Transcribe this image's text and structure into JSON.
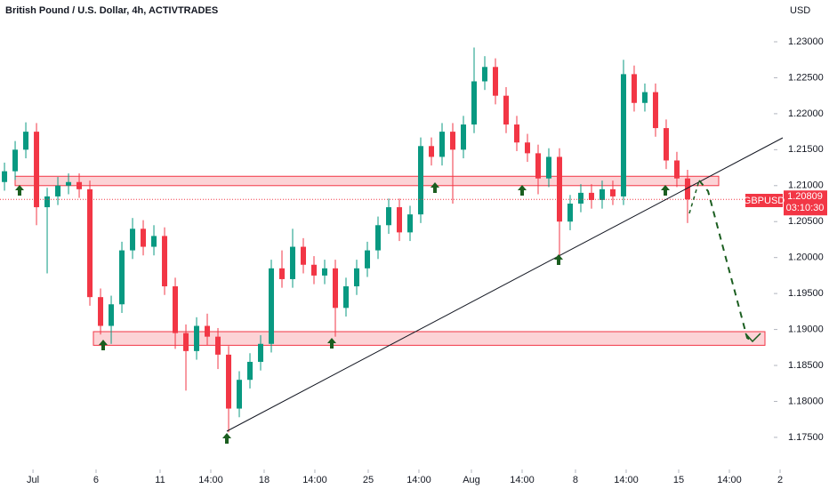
{
  "chart_data": {
    "type": "candlestick",
    "title": "British Pound / U.S. Dollar, 4h, ACTIVTRADES",
    "currency": "USD",
    "symbol": "GBPUSD",
    "last_price": 1.20809,
    "last_price_label": "1.20809",
    "countdown": "03:10:30",
    "up_color": "#089981",
    "down_color": "#f23645",
    "open": [
      1.2105,
      1.212,
      1.215,
      1.2175,
      1.207,
      1.2085,
      1.21,
      1.2105,
      1.2095,
      1.1945,
      1.1905,
      1.1935,
      1.201,
      1.204,
      1.2015,
      1.203,
      1.196,
      1.1895,
      1.187,
      1.1905,
      1.189,
      1.1865,
      1.179,
      1.183,
      1.1855,
      1.188,
      1.1985,
      1.197,
      1.2015,
      1.199,
      1.1975,
      1.1985,
      1.193,
      1.196,
      1.1985,
      1.201,
      1.2045,
      1.207,
      1.2035,
      1.206,
      1.2155,
      1.214,
      1.2175,
      1.215,
      1.2185,
      1.2245,
      1.2265,
      1.2225,
      1.2185,
      1.216,
      1.2145,
      1.211,
      1.214,
      1.205,
      1.2075,
      1.209,
      1.208,
      1.2095,
      1.2085,
      1.2255,
      1.2215,
      1.223,
      1.218,
      1.2135,
      1.211
    ],
    "high": [
      1.2132,
      1.2162,
      1.2188,
      1.2187,
      1.2097,
      1.2112,
      1.2117,
      1.2117,
      1.2107,
      1.1957,
      1.1947,
      1.2022,
      1.2055,
      1.2052,
      1.2045,
      1.2042,
      1.1972,
      1.1907,
      1.1917,
      1.1922,
      1.1902,
      1.1877,
      1.1842,
      1.1867,
      1.1892,
      1.1997,
      1.201,
      1.204,
      1.2027,
      1.2002,
      1.1997,
      1.1997,
      1.1972,
      1.1997,
      1.2022,
      1.2057,
      1.2082,
      1.2082,
      1.2072,
      1.2167,
      1.2167,
      1.2187,
      1.2187,
      1.2197,
      1.2292,
      1.228,
      1.2277,
      1.2237,
      1.2197,
      1.2172,
      1.2157,
      1.2152,
      1.2152,
      1.2087,
      1.2102,
      1.2102,
      1.2107,
      1.2107,
      1.2275,
      1.2267,
      1.2242,
      1.2242,
      1.2192,
      1.2147,
      1.2122
    ],
    "low": [
      1.2093,
      1.2108,
      1.2138,
      1.2045,
      1.1978,
      1.2073,
      1.2088,
      1.2083,
      1.1933,
      1.1893,
      1.188,
      1.1923,
      1.1998,
      1.2003,
      1.2003,
      1.1948,
      1.1873,
      1.1815,
      1.1858,
      1.1878,
      1.1845,
      1.1757,
      1.1778,
      1.1818,
      1.1843,
      1.1868,
      1.1958,
      1.1958,
      1.1978,
      1.1963,
      1.1963,
      1.189,
      1.1918,
      1.1948,
      1.1973,
      1.1998,
      1.2033,
      1.2023,
      1.2023,
      1.2048,
      1.2128,
      1.2128,
      1.2075,
      1.2138,
      1.2173,
      1.2233,
      1.2213,
      1.2173,
      1.2148,
      1.2133,
      1.2088,
      1.2098,
      1.2,
      1.2038,
      1.2063,
      1.2068,
      1.2068,
      1.2073,
      1.2073,
      1.2203,
      1.2203,
      1.2168,
      1.2123,
      1.2098,
      1.2048
    ],
    "close": [
      1.212,
      1.215,
      1.2175,
      1.207,
      1.2085,
      1.21,
      1.2105,
      1.2095,
      1.1945,
      1.1905,
      1.1935,
      1.201,
      1.204,
      1.2015,
      1.203,
      1.196,
      1.1895,
      1.187,
      1.1905,
      1.189,
      1.1865,
      1.179,
      1.183,
      1.1855,
      1.188,
      1.1985,
      1.197,
      1.2015,
      1.199,
      1.1975,
      1.1985,
      1.193,
      1.196,
      1.1985,
      1.201,
      1.2045,
      1.207,
      1.2035,
      1.206,
      1.2155,
      1.214,
      1.2175,
      1.215,
      1.2185,
      1.2245,
      1.2265,
      1.2225,
      1.2185,
      1.216,
      1.2145,
      1.211,
      1.214,
      1.205,
      1.2075,
      1.209,
      1.208,
      1.2095,
      1.2085,
      1.2255,
      1.2215,
      1.223,
      1.218,
      1.2135,
      1.211,
      1.20809
    ],
    "zones": [
      {
        "low": 1.21,
        "high": 1.2113
      },
      {
        "low": 1.1878,
        "high": 1.1897
      }
    ],
    "xlim": [
      -0.42,
      72.67
    ],
    "xticks": [
      {
        "value": 2.67,
        "label": "Jul"
      },
      {
        "value": 8.58,
        "label": "6"
      },
      {
        "value": 14.58,
        "label": "11"
      },
      {
        "value": 19.33,
        "label": "14:00"
      },
      {
        "value": 24.33,
        "label": "18"
      },
      {
        "value": 29.08,
        "label": "14:00"
      },
      {
        "value": 34.08,
        "label": "25"
      },
      {
        "value": 38.83,
        "label": "14:00"
      },
      {
        "value": 43.75,
        "label": "Aug"
      },
      {
        "value": 48.5,
        "label": "14:00"
      },
      {
        "value": 53.5,
        "label": "8"
      },
      {
        "value": 58.25,
        "label": "14:00"
      },
      {
        "value": 63.17,
        "label": "15"
      },
      {
        "value": 67.92,
        "label": "14:00"
      },
      {
        "value": 72.67,
        "label": "2"
      }
    ],
    "ylim": [
      1.17054,
      1.23581
    ],
    "yticks": [
      {
        "value": 1.175,
        "label": "1.17500"
      },
      {
        "value": 1.18,
        "label": "1.18000"
      },
      {
        "value": 1.185,
        "label": "1.18500"
      },
      {
        "value": 1.19,
        "label": "1.19000"
      },
      {
        "value": 1.195,
        "label": "1.19500"
      },
      {
        "value": 1.2,
        "label": "1.20000"
      },
      {
        "value": 1.205,
        "label": "1.20500"
      },
      {
        "value": 1.21,
        "label": "1.21000"
      },
      {
        "value": 1.215,
        "label": "1.21500"
      },
      {
        "value": 1.22,
        "label": "1.22000"
      },
      {
        "value": 1.225,
        "label": "1.22500"
      },
      {
        "value": 1.23,
        "label": "1.23000"
      }
    ]
  }
}
